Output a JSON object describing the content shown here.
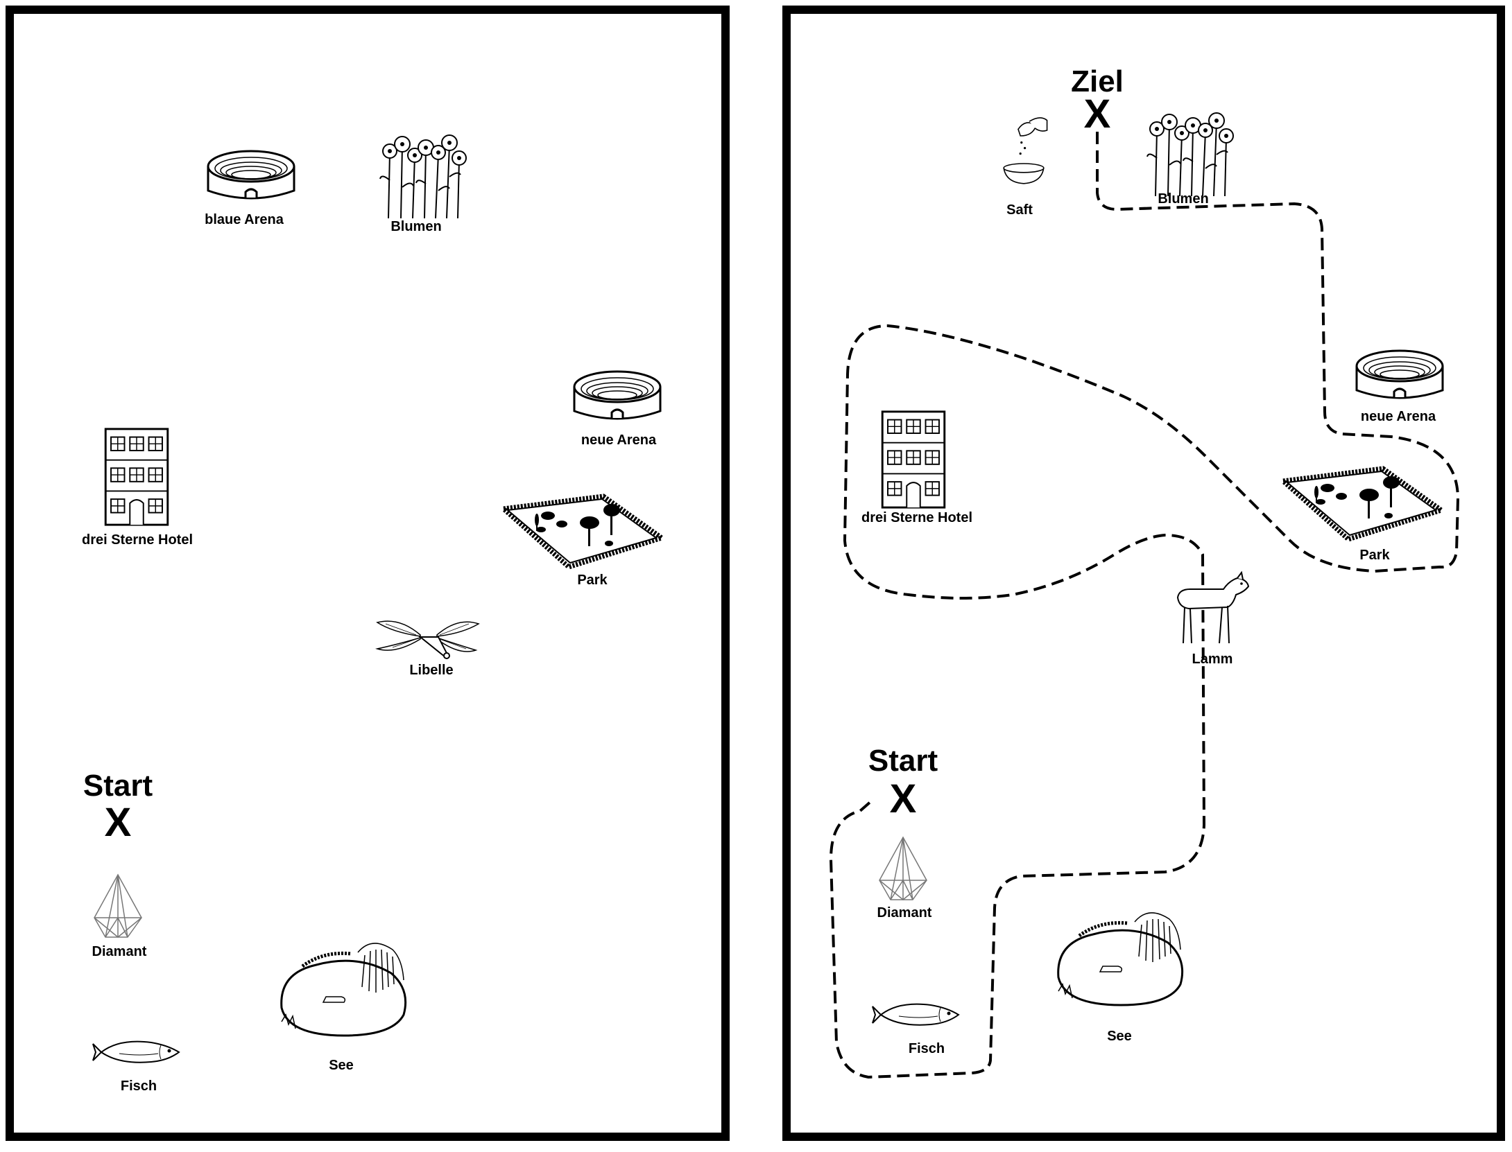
{
  "left_map": {
    "start_label": "Start",
    "start_marker": "X",
    "landmarks": {
      "blue_arena": "blaue Arena",
      "flowers": "Blumen",
      "new_arena": "neue Arena",
      "hotel": "drei Sterne Hotel",
      "park": "Park",
      "dragonfly": "Libelle",
      "diamond": "Diamant",
      "fish": "Fisch",
      "lake": "See"
    }
  },
  "right_map": {
    "goal_label": "Ziel",
    "goal_marker": "X",
    "start_label": "Start",
    "start_marker": "X",
    "landmarks": {
      "juice": "Saft",
      "flowers": "Blumen",
      "new_arena": "neue Arena",
      "hotel": "drei Sterne Hotel",
      "park": "Park",
      "lamb": "Lamm",
      "diamond": "Diamant",
      "fish": "Fisch",
      "lake": "See"
    }
  },
  "icons": [
    "arena-icon",
    "flowers-icon",
    "hotel-icon",
    "park-icon",
    "dragonfly-icon",
    "diamond-icon",
    "fish-icon",
    "lake-icon",
    "juice-bowl-icon",
    "lamb-icon"
  ],
  "colors": {
    "ink": "#000000",
    "background": "#ffffff"
  }
}
